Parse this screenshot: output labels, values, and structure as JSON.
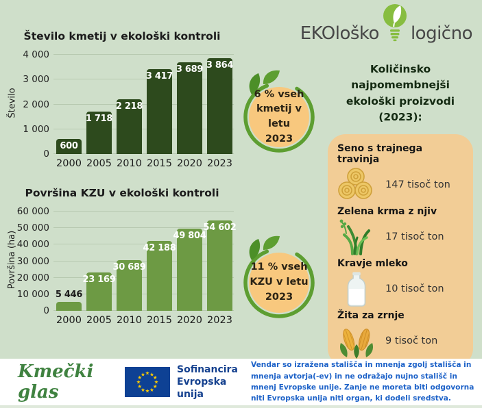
{
  "logo": {
    "part1": "EKOloško",
    "part2": "logično"
  },
  "chart_data": [
    {
      "type": "bar",
      "title": "Število kmetij v ekološki kontroli",
      "xlabel": "",
      "ylabel": "Število",
      "categories": [
        "2000",
        "2005",
        "2010",
        "2015",
        "2020",
        "2023"
      ],
      "values": [
        600,
        1718,
        2218,
        3417,
        3689,
        3864
      ],
      "value_labels": [
        "600",
        "1 718",
        "2 218",
        "3 417",
        "3 689",
        "3 864"
      ],
      "ymax": 4000,
      "ylim": [
        0,
        4000
      ],
      "ytick_labels": [
        "4 000",
        "3 000",
        "2 000",
        "1 000",
        "0"
      ],
      "grid": true,
      "legend": "none",
      "bar_color": "#2d4a1d"
    },
    {
      "type": "bar",
      "title": "Površina KZU v ekološki kontroli",
      "xlabel": "",
      "ylabel": "Površina (ha)",
      "categories": [
        "2000",
        "2005",
        "2010",
        "2015",
        "2020",
        "2023"
      ],
      "values": [
        5446,
        23169,
        30689,
        42188,
        49804,
        54602
      ],
      "value_labels": [
        "5 446",
        "23 169",
        "30 689",
        "42 188",
        "49 804",
        "54 602"
      ],
      "ymax": 60000,
      "ylim": [
        0,
        60000
      ],
      "ytick_labels": [
        "60 000",
        "50 000",
        "40 000",
        "30 000",
        "20 000",
        "10 000",
        "0"
      ],
      "grid": true,
      "legend": "none",
      "bar_color": "#6d9a44"
    }
  ],
  "badges": [
    {
      "text": "6 % vseh\nkmetij v letu\n2023"
    },
    {
      "text": "11 % vseh\nKZU v letu\n2023"
    }
  ],
  "panel": {
    "title": "Količinsko najpomembnejši\nekološki proizvodi (2023):",
    "products": [
      {
        "name": "Seno s trajnega travinja",
        "icon": "hay-bales-icon",
        "amount": "147 tisoč ton"
      },
      {
        "name": "Zelena krma z njiv",
        "icon": "grass-icon",
        "amount": "17 tisoč ton"
      },
      {
        "name": "Kravje mleko",
        "icon": "milk-bottle-icon",
        "amount": "10 tisoč ton"
      },
      {
        "name": "Žita za zrnje",
        "icon": "corn-icon",
        "amount": "9 tisoč ton"
      }
    ]
  },
  "footer": {
    "brand": "Kmečki glas",
    "eu_label": "Sofinancira\nEvropska unija",
    "disclaimer": "Vendar so izražena stališča in mnenja zgolj stališča in mnenja avtorja(-ev) in ne odražajo nujno stališč in mnenj Evropske unije. Zanje ne moreta biti odgovorna niti Evropska unija niti organ, ki dodeli sredstva."
  },
  "colors": {
    "background": "#cfdfca",
    "card": "#f2cd96",
    "badge_fill": "#f8c87e",
    "badge_ring": "#5d9e31",
    "bar_dark": "#2d4a1d",
    "bar_light": "#6d9a44",
    "eu_blue": "#0e4194",
    "star_yellow": "#ffcc00",
    "brand_green": "#3f8240",
    "disclaimer_blue": "#1d62c8",
    "logo_green": "#87bd40"
  }
}
